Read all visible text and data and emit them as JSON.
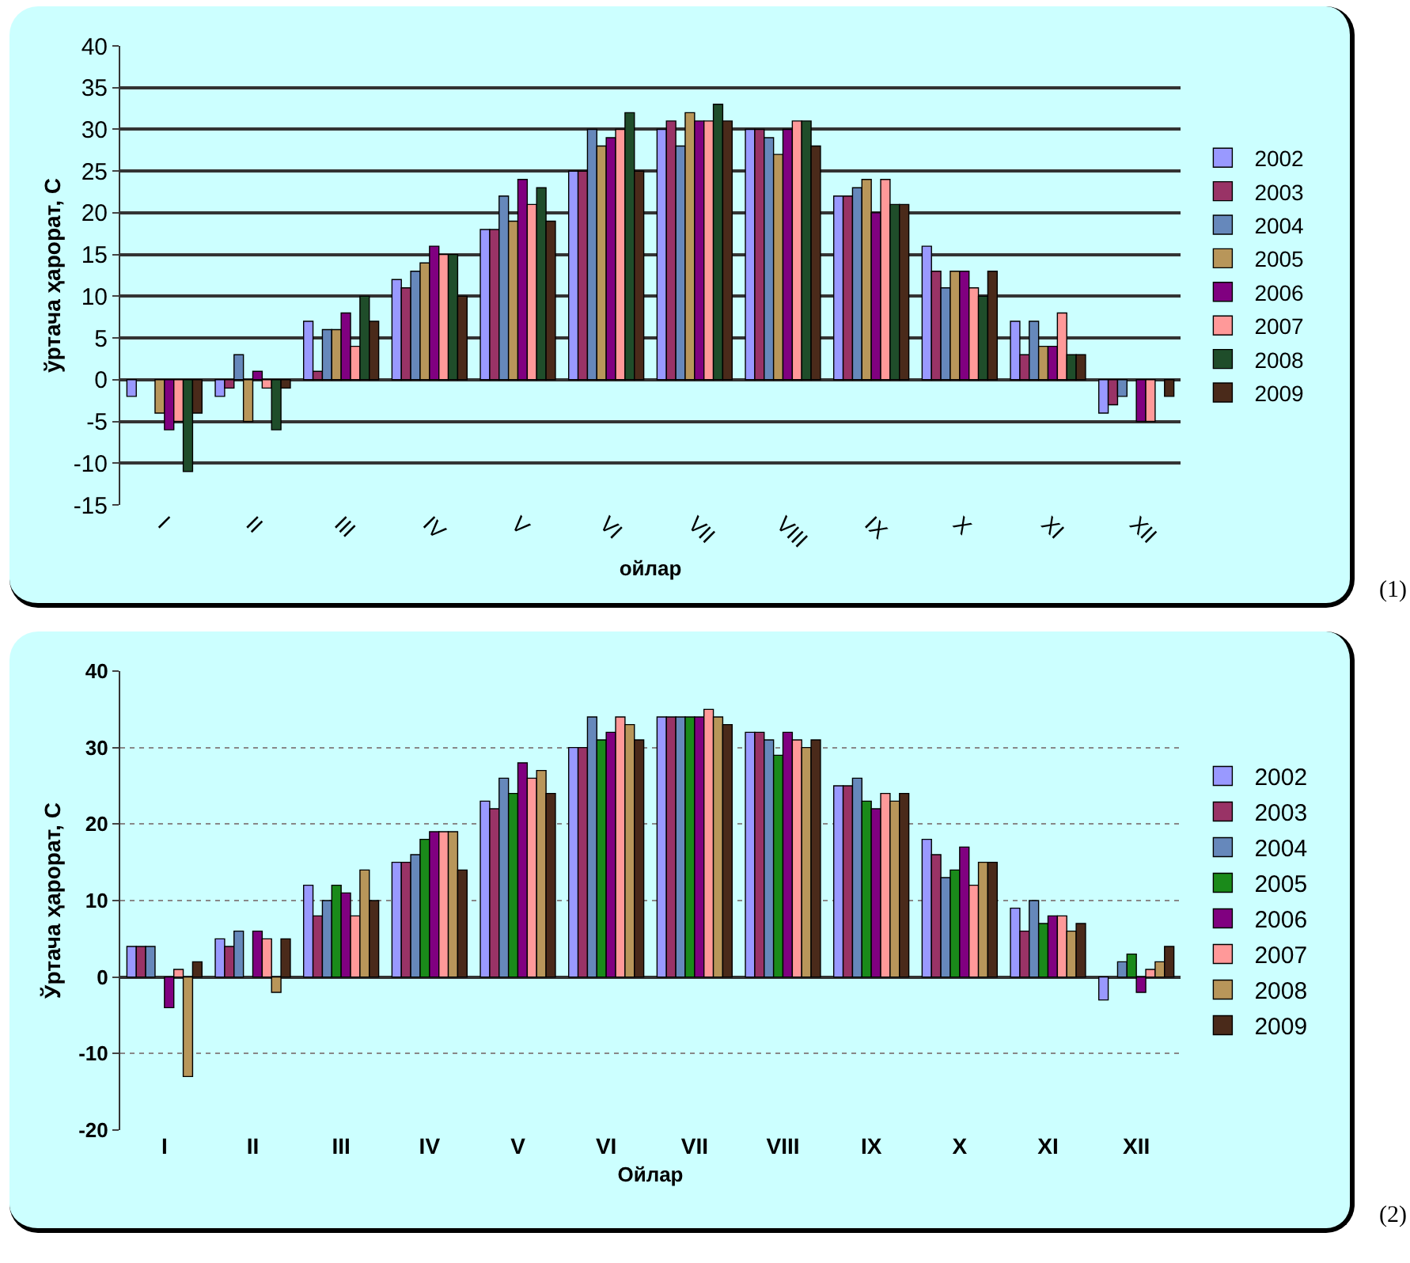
{
  "chart_data": [
    {
      "type": "bar",
      "xlabel": "ойлар",
      "ylabel": "ўртача ҳарорат, С",
      "annotations": [
        "(1)"
      ],
      "categories": [
        "I",
        "II",
        "III",
        "IV",
        "V",
        "VI",
        "VII",
        "VIII",
        "IX",
        "X",
        "XI",
        "XII"
      ],
      "series": [
        {
          "name": "2002",
          "color": "#9999ff",
          "values": [
            -2,
            -2,
            7,
            12,
            18,
            25,
            30,
            30,
            22,
            16,
            7,
            -4
          ]
        },
        {
          "name": "2003",
          "color": "#993366",
          "values": [
            null,
            -1,
            1,
            11,
            18,
            25,
            31,
            30,
            22,
            13,
            3,
            -3
          ]
        },
        {
          "name": "2004",
          "color": "#6688bb",
          "values": [
            null,
            3,
            6,
            13,
            22,
            30,
            28,
            29,
            23,
            11,
            7,
            -2
          ]
        },
        {
          "name": "2005",
          "color": "#b8965a",
          "values": [
            -4,
            -5,
            6,
            14,
            19,
            28,
            32,
            27,
            24,
            13,
            4,
            null
          ]
        },
        {
          "name": "2006",
          "color": "#800080",
          "values": [
            -6,
            1,
            8,
            16,
            24,
            29,
            31,
            30,
            20,
            13,
            4,
            -5
          ]
        },
        {
          "name": "2007",
          "color": "#ff9999",
          "values": [
            -5,
            -1,
            4,
            15,
            21,
            30,
            31,
            31,
            24,
            11,
            8,
            -5
          ]
        },
        {
          "name": "2008",
          "color": "#1f4d2a",
          "values": [
            -11,
            -6,
            10,
            15,
            23,
            32,
            33,
            31,
            21,
            10,
            3,
            null
          ]
        },
        {
          "name": "2009",
          "color": "#4a2a1a",
          "values": [
            -4,
            -1,
            7,
            10,
            19,
            25,
            31,
            28,
            21,
            13,
            3,
            -2
          ]
        }
      ],
      "ylim": [
        -15,
        40
      ],
      "yticks": [
        -15,
        -10,
        -5,
        0,
        5,
        10,
        15,
        20,
        25,
        30,
        35,
        40
      ],
      "grid": "y",
      "legend": "right"
    },
    {
      "type": "bar",
      "xlabel": "Ойлар",
      "ylabel": "Ўртача ҳарорат, С",
      "annotations": [
        "(2)"
      ],
      "categories": [
        "I",
        "II",
        "III",
        "IV",
        "V",
        "VI",
        "VII",
        "VIII",
        "IX",
        "X",
        "XI",
        "XII"
      ],
      "series": [
        {
          "name": "2002",
          "color": "#9999ff",
          "values": [
            4,
            5,
            12,
            15,
            23,
            30,
            34,
            32,
            25,
            18,
            9,
            -3
          ]
        },
        {
          "name": "2003",
          "color": "#993366",
          "values": [
            4,
            4,
            8,
            15,
            22,
            30,
            34,
            32,
            25,
            16,
            6,
            null
          ]
        },
        {
          "name": "2004",
          "color": "#6688bb",
          "values": [
            4,
            6,
            10,
            16,
            26,
            34,
            34,
            31,
            26,
            13,
            10,
            2
          ]
        },
        {
          "name": "2005",
          "color": "#1a8a1a",
          "values": [
            null,
            null,
            12,
            18,
            24,
            31,
            34,
            29,
            23,
            14,
            7,
            3
          ]
        },
        {
          "name": "2006",
          "color": "#800080",
          "values": [
            -4,
            6,
            11,
            19,
            28,
            32,
            34,
            32,
            22,
            17,
            8,
            -2
          ]
        },
        {
          "name": "2007",
          "color": "#ff9999",
          "values": [
            1,
            5,
            8,
            19,
            26,
            34,
            35,
            31,
            24,
            12,
            8,
            1
          ]
        },
        {
          "name": "2008",
          "color": "#b8965a",
          "values": [
            -13,
            -2,
            14,
            19,
            27,
            33,
            34,
            30,
            23,
            15,
            6,
            2
          ]
        },
        {
          "name": "2009",
          "color": "#4a2a1a",
          "values": [
            2,
            5,
            10,
            14,
            24,
            31,
            33,
            31,
            24,
            15,
            7,
            4
          ]
        }
      ],
      "ylim": [
        -20,
        40
      ],
      "yticks": [
        -20,
        -10,
        0,
        10,
        20,
        30,
        40
      ],
      "grid": "y",
      "legend": "right"
    }
  ]
}
